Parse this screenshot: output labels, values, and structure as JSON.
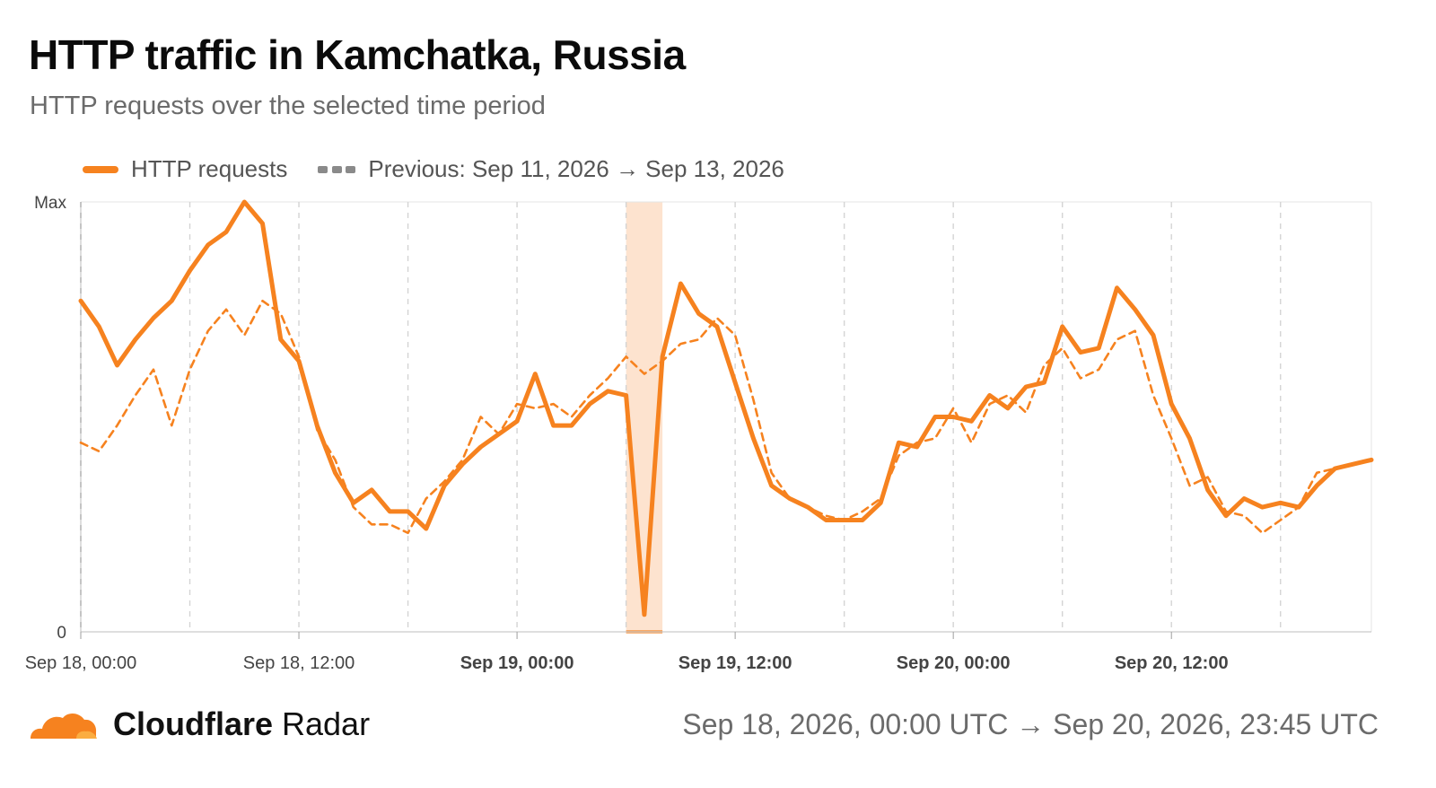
{
  "header": {
    "title": "HTTP traffic in Kamchatka, Russia",
    "subtitle": "HTTP requests over the selected time period"
  },
  "legend": {
    "current_label": "HTTP requests",
    "previous_label": "Previous: Sep 11, 2026 → Sep 13, 2026"
  },
  "footer": {
    "brand_bold": "Cloudflare",
    "brand_regular": " Radar",
    "date_range": "Sep 18, 2026, 00:00 UTC → Sep 20, 2026, 23:45 UTC"
  },
  "colors": {
    "current": "#f6821f",
    "previous": "#f6821f",
    "highlight": "#fde3cf",
    "grid": "#d4d4d4",
    "axis_text": "#444444"
  },
  "chart_data": {
    "type": "line",
    "x_unit": "hours since Sep 18, 2026 00:00 UTC",
    "xlim": [
      0,
      71
    ],
    "ylim": [
      0,
      1
    ],
    "y_ticks": [
      {
        "value": 0,
        "label": "0"
      },
      {
        "value": 1,
        "label": "Max"
      }
    ],
    "x_ticks": [
      {
        "value": 0,
        "label": "Sep 18, 00:00",
        "bold": false
      },
      {
        "value": 12,
        "label": "Sep 18, 12:00",
        "bold": false
      },
      {
        "value": 24,
        "label": "Sep 19, 00:00",
        "bold": true
      },
      {
        "value": 36,
        "label": "Sep 19, 12:00",
        "bold": true
      },
      {
        "value": 48,
        "label": "Sep 20, 00:00",
        "bold": true
      },
      {
        "value": 60,
        "label": "Sep 20, 12:00",
        "bold": true
      }
    ],
    "minor_gridlines": [
      6,
      18,
      30,
      42,
      54,
      66
    ],
    "highlight_range": [
      30,
      32
    ],
    "series": [
      {
        "name": "HTTP requests",
        "style": "solid",
        "points": [
          [
            0,
            0.77
          ],
          [
            1,
            0.71
          ],
          [
            2,
            0.62
          ],
          [
            3,
            0.68
          ],
          [
            4,
            0.73
          ],
          [
            5,
            0.77
          ],
          [
            6,
            0.84
          ],
          [
            7,
            0.9
          ],
          [
            8,
            0.93
          ],
          [
            9,
            1.0
          ],
          [
            10,
            0.95
          ],
          [
            11,
            0.68
          ],
          [
            12,
            0.63
          ],
          [
            13,
            0.48
          ],
          [
            14,
            0.37
          ],
          [
            15,
            0.3
          ],
          [
            16,
            0.33
          ],
          [
            17,
            0.28
          ],
          [
            18,
            0.28
          ],
          [
            19,
            0.24
          ],
          [
            20,
            0.34
          ],
          [
            21,
            0.39
          ],
          [
            22,
            0.43
          ],
          [
            23,
            0.46
          ],
          [
            24,
            0.49
          ],
          [
            25,
            0.6
          ],
          [
            26,
            0.48
          ],
          [
            27,
            0.48
          ],
          [
            28,
            0.53
          ],
          [
            29,
            0.56
          ],
          [
            30,
            0.55
          ],
          [
            31,
            0.04
          ],
          [
            32,
            0.64
          ],
          [
            33,
            0.81
          ],
          [
            34,
            0.74
          ],
          [
            35,
            0.71
          ],
          [
            36,
            0.58
          ],
          [
            37,
            0.45
          ],
          [
            38,
            0.34
          ],
          [
            39,
            0.31
          ],
          [
            40,
            0.29
          ],
          [
            41,
            0.26
          ],
          [
            42,
            0.26
          ],
          [
            43,
            0.26
          ],
          [
            44,
            0.3
          ],
          [
            45,
            0.44
          ],
          [
            46,
            0.43
          ],
          [
            47,
            0.5
          ],
          [
            48,
            0.5
          ],
          [
            49,
            0.49
          ],
          [
            50,
            0.55
          ],
          [
            51,
            0.52
          ],
          [
            52,
            0.57
          ],
          [
            53,
            0.58
          ],
          [
            54,
            0.71
          ],
          [
            55,
            0.65
          ],
          [
            56,
            0.66
          ],
          [
            57,
            0.8
          ],
          [
            58,
            0.75
          ],
          [
            59,
            0.69
          ],
          [
            60,
            0.53
          ],
          [
            61,
            0.45
          ],
          [
            62,
            0.33
          ],
          [
            63,
            0.27
          ],
          [
            64,
            0.31
          ],
          [
            65,
            0.29
          ],
          [
            66,
            0.3
          ],
          [
            67,
            0.29
          ],
          [
            68,
            0.34
          ],
          [
            69,
            0.38
          ],
          [
            70,
            0.39
          ],
          [
            71,
            0.4
          ]
        ]
      },
      {
        "name": "Previous: Sep 11, 2026 → Sep 13, 2026",
        "style": "dashed",
        "points": [
          [
            0,
            0.44
          ],
          [
            1,
            0.42
          ],
          [
            2,
            0.48
          ],
          [
            3,
            0.55
          ],
          [
            4,
            0.61
          ],
          [
            5,
            0.48
          ],
          [
            6,
            0.61
          ],
          [
            7,
            0.7
          ],
          [
            8,
            0.75
          ],
          [
            9,
            0.69
          ],
          [
            10,
            0.77
          ],
          [
            11,
            0.74
          ],
          [
            12,
            0.64
          ],
          [
            13,
            0.47
          ],
          [
            14,
            0.4
          ],
          [
            15,
            0.29
          ],
          [
            16,
            0.25
          ],
          [
            17,
            0.25
          ],
          [
            18,
            0.23
          ],
          [
            19,
            0.31
          ],
          [
            20,
            0.35
          ],
          [
            21,
            0.4
          ],
          [
            22,
            0.5
          ],
          [
            23,
            0.46
          ],
          [
            24,
            0.53
          ],
          [
            25,
            0.52
          ],
          [
            26,
            0.53
          ],
          [
            27,
            0.5
          ],
          [
            28,
            0.55
          ],
          [
            29,
            0.59
          ],
          [
            30,
            0.64
          ],
          [
            31,
            0.6
          ],
          [
            32,
            0.63
          ],
          [
            33,
            0.67
          ],
          [
            34,
            0.68
          ],
          [
            35,
            0.73
          ],
          [
            36,
            0.69
          ],
          [
            37,
            0.54
          ],
          [
            38,
            0.37
          ],
          [
            39,
            0.31
          ],
          [
            40,
            0.29
          ],
          [
            41,
            0.27
          ],
          [
            42,
            0.26
          ],
          [
            43,
            0.28
          ],
          [
            44,
            0.31
          ],
          [
            45,
            0.41
          ],
          [
            46,
            0.44
          ],
          [
            47,
            0.45
          ],
          [
            48,
            0.52
          ],
          [
            49,
            0.44
          ],
          [
            50,
            0.53
          ],
          [
            51,
            0.55
          ],
          [
            52,
            0.51
          ],
          [
            53,
            0.62
          ],
          [
            54,
            0.66
          ],
          [
            55,
            0.59
          ],
          [
            56,
            0.61
          ],
          [
            57,
            0.68
          ],
          [
            58,
            0.7
          ],
          [
            59,
            0.55
          ],
          [
            60,
            0.45
          ],
          [
            61,
            0.34
          ],
          [
            62,
            0.36
          ],
          [
            63,
            0.28
          ],
          [
            64,
            0.27
          ],
          [
            65,
            0.23
          ],
          [
            66,
            0.26
          ],
          [
            67,
            0.29
          ],
          [
            68,
            0.37
          ],
          [
            69,
            0.38
          ],
          [
            70,
            0.39
          ],
          [
            71,
            0.4
          ]
        ]
      }
    ]
  }
}
